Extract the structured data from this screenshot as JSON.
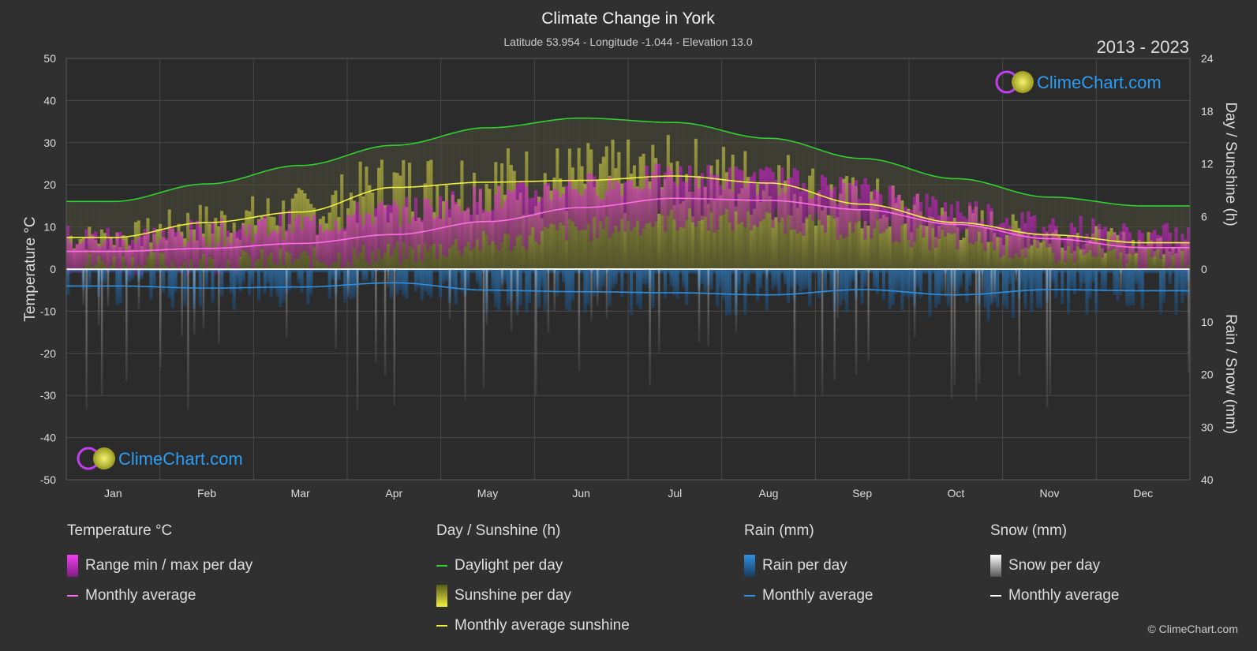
{
  "title": "Climate Change in York",
  "subtitle": "Latitude 53.954 - Longitude -1.044 - Elevation 13.0",
  "year_range": "2013 - 2023",
  "brand": "ClimeChart.com",
  "copyright": "© ClimeChart.com",
  "colors": {
    "background": "#303030",
    "temp_range": "#e040c8",
    "temp_avg": "#ff6ee8",
    "daylight": "#30d030",
    "sunshine_fill": "#a8a830",
    "sunshine_avg": "#f0f040",
    "rain": "#2a7fc8",
    "rain_avg": "#2f8fe0",
    "snow": "#9a9a9a",
    "snow_avg": "#ffffff",
    "brand": "#2a9df4"
  },
  "legend": {
    "temperature": {
      "title": "Temperature °C",
      "range_label": "Range min / max per day",
      "avg_label": "Monthly average"
    },
    "sunshine": {
      "title": "Day / Sunshine (h)",
      "daylight_label": "Daylight per day",
      "sunshine_label": "Sunshine per day",
      "avg_label": "Monthly average sunshine"
    },
    "rain": {
      "title": "Rain (mm)",
      "rain_label": "Rain per day",
      "avg_label": "Monthly average"
    },
    "snow": {
      "title": "Snow (mm)",
      "snow_label": "Snow per day",
      "avg_label": "Monthly average"
    }
  },
  "chart_data": {
    "type": "area",
    "categories": [
      "Jan",
      "Feb",
      "Mar",
      "Apr",
      "May",
      "Jun",
      "Jul",
      "Aug",
      "Sep",
      "Oct",
      "Nov",
      "Dec"
    ],
    "axes": {
      "left": {
        "label": "Temperature °C",
        "range": [
          -50,
          50
        ],
        "ticks": [
          50,
          40,
          30,
          20,
          10,
          0,
          -10,
          -20,
          -30,
          -40,
          -50
        ]
      },
      "right_top": {
        "label": "Day / Sunshine (h)",
        "range": [
          0,
          24
        ],
        "ticks": [
          24,
          18,
          12,
          6,
          0
        ]
      },
      "right_bottom": {
        "label": "Rain / Snow (mm)",
        "range": [
          0,
          40
        ],
        "ticks": [
          0,
          10,
          20,
          30,
          40
        ]
      }
    },
    "grid": true,
    "series": [
      {
        "name": "Daylight per day",
        "unit": "h",
        "values": [
          7.7,
          9.7,
          11.8,
          14.1,
          16.1,
          17.2,
          16.7,
          14.9,
          12.6,
          10.3,
          8.2,
          7.2
        ]
      },
      {
        "name": "Monthly average sunshine",
        "unit": "h",
        "values": [
          3.6,
          5.3,
          6.5,
          9.3,
          9.9,
          10.1,
          10.6,
          9.8,
          7.4,
          5.3,
          3.9,
          3.0
        ]
      },
      {
        "name": "Temperature monthly average",
        "unit": "°C",
        "values": [
          4.2,
          4.9,
          6.1,
          8.2,
          11.3,
          14.6,
          16.8,
          16.3,
          14.1,
          10.6,
          7.2,
          5.1
        ]
      },
      {
        "name": "Temperature daily max (approx)",
        "unit": "°C",
        "values": [
          7.2,
          8.4,
          10.7,
          13.6,
          16.6,
          19.6,
          21.8,
          21.2,
          18.4,
          14.2,
          10.2,
          7.6
        ]
      },
      {
        "name": "Temperature daily min (approx)",
        "unit": "°C",
        "values": [
          1.4,
          1.5,
          2.2,
          3.6,
          6.2,
          9.4,
          11.6,
          11.4,
          9.5,
          6.9,
          4.0,
          2.1
        ]
      },
      {
        "name": "Rain monthly average",
        "unit": "mm",
        "values": [
          3.2,
          3.6,
          3.4,
          2.6,
          4.0,
          4.3,
          4.5,
          4.9,
          3.9,
          4.9,
          3.9,
          4.1
        ]
      },
      {
        "name": "Snow monthly average",
        "unit": "mm",
        "values": [
          0.1,
          0.1,
          0.05,
          0,
          0,
          0,
          0,
          0,
          0,
          0,
          0,
          0.05
        ]
      }
    ]
  }
}
